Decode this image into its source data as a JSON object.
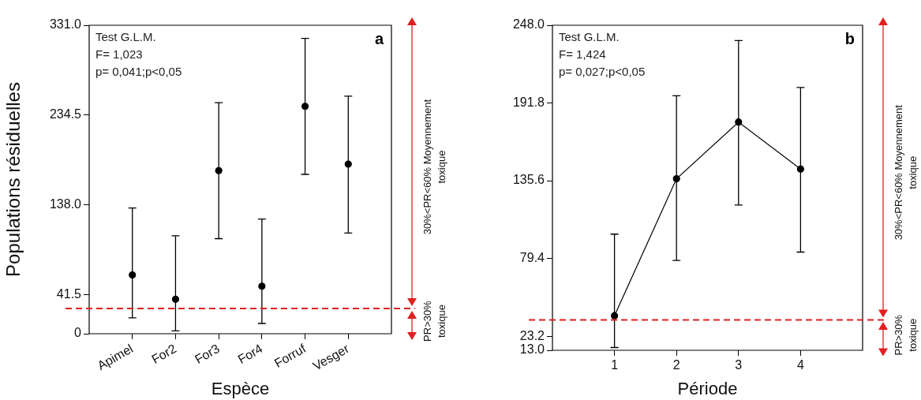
{
  "chart_data": [
    {
      "type": "scatter",
      "title": "a",
      "xlabel": "Espèce",
      "ylabel": "Populations résiduelles",
      "annotations": [
        "Test G.L.M.",
        "F= 1,023",
        "p= 0,041;p<0,05",
        "30%<PR<60% Moyennement toxique",
        "PR>30% toxique"
      ],
      "categories": [
        "Apimel",
        "For2",
        "For3",
        "For4",
        "Forruf",
        "Vesger"
      ],
      "values": [
        63,
        37,
        175,
        51,
        244,
        182
      ],
      "errors": [
        [
          17,
          135
        ],
        [
          3,
          105
        ],
        [
          102,
          248
        ],
        [
          11,
          123
        ],
        [
          171,
          317
        ],
        [
          108,
          255
        ]
      ],
      "color": "#000000",
      "marker": "circle",
      "ylim": [
        0,
        331
      ],
      "yticks": [
        0,
        41.5,
        {
          "value": 138,
          "label": "138.0"
        },
        234.5,
        {
          "value": 331,
          "label": "331.0"
        }
      ],
      "ref_lines": [
        {
          "axis": "y",
          "value": 27,
          "color": "#e02020",
          "line_style": "dashed"
        }
      ],
      "grid": false,
      "legend": false
    },
    {
      "type": "line",
      "title": "b",
      "xlabel": "Période",
      "annotations": [
        "Test G.L.M.",
        "F= 1,424",
        "p= 0,027;p<0,05",
        "30%<PR<60% Moyennement toxique",
        "PR>30% toxique"
      ],
      "x": [
        1,
        2,
        3,
        4
      ],
      "values": [
        38,
        137,
        178,
        144
      ],
      "errors": [
        [
          15,
          97
        ],
        [
          78,
          197
        ],
        [
          118,
          237
        ],
        [
          84,
          203
        ]
      ],
      "color": "#000000",
      "marker": "circle",
      "line_style": "solid",
      "xlim": [
        0,
        5
      ],
      "xticks": [
        1,
        2,
        3,
        4
      ],
      "ylim": [
        13,
        248
      ],
      "yticks": [
        {
          "value": 13,
          "label": "13.0"
        },
        23.2,
        79.4,
        135.6,
        191.8,
        {
          "value": 248,
          "label": "248.0"
        }
      ],
      "ref_lines": [
        {
          "axis": "y",
          "value": 35,
          "color": "#e02020",
          "line_style": "dashed"
        }
      ],
      "grid": false,
      "legend": false
    }
  ]
}
